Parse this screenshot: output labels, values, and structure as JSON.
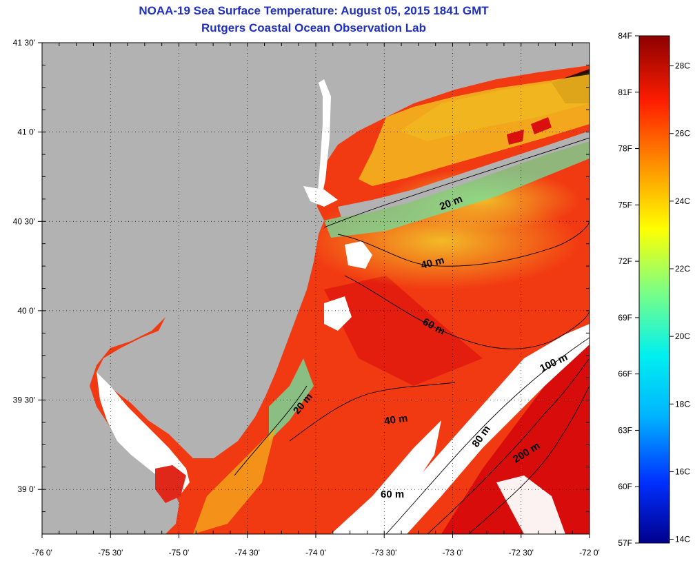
{
  "title": {
    "line1": "NOAA-19 Sea Surface Temperature:  August 05, 2015 1841 GMT",
    "line2": "Rutgers Coastal Ocean Observation Lab"
  },
  "map": {
    "lon_ticks": [
      "-76 0'",
      "-75 30'",
      "-75 0'",
      "-74 30'",
      "-74 0'",
      "-73 30'",
      "-73 0'",
      "-72 30'",
      "-72 0'"
    ],
    "lat_ticks": [
      "41 30'",
      "41 0'",
      "40 30'",
      "40 0'",
      "39 30'",
      "39 0'"
    ],
    "lon_range": [
      -76,
      -72
    ],
    "lat_range": [
      38.75,
      41.5
    ],
    "colors": {
      "land": "#b2b2b2",
      "cloud": "#ffffff",
      "warm_water": "#f23a12",
      "hot_water": "#d90c0c",
      "cool_water": "#f2a81a",
      "shelf_water": "#e8d430",
      "cold_water": "#6fe0a0"
    }
  },
  "isobaths": {
    "labels": [
      "20 m",
      "40 m",
      "60 m",
      "100 m",
      "20 m",
      "40 m",
      "80 m",
      "200 m",
      "60 m"
    ]
  },
  "colorbar": {
    "fahrenheit": [
      "84F",
      "81F",
      "78F",
      "75F",
      "72F",
      "69F",
      "66F",
      "63F",
      "60F",
      "57F"
    ],
    "celsius": [
      "28C",
      "26C",
      "24C",
      "22C",
      "20C",
      "18C",
      "16C",
      "14C"
    ]
  }
}
